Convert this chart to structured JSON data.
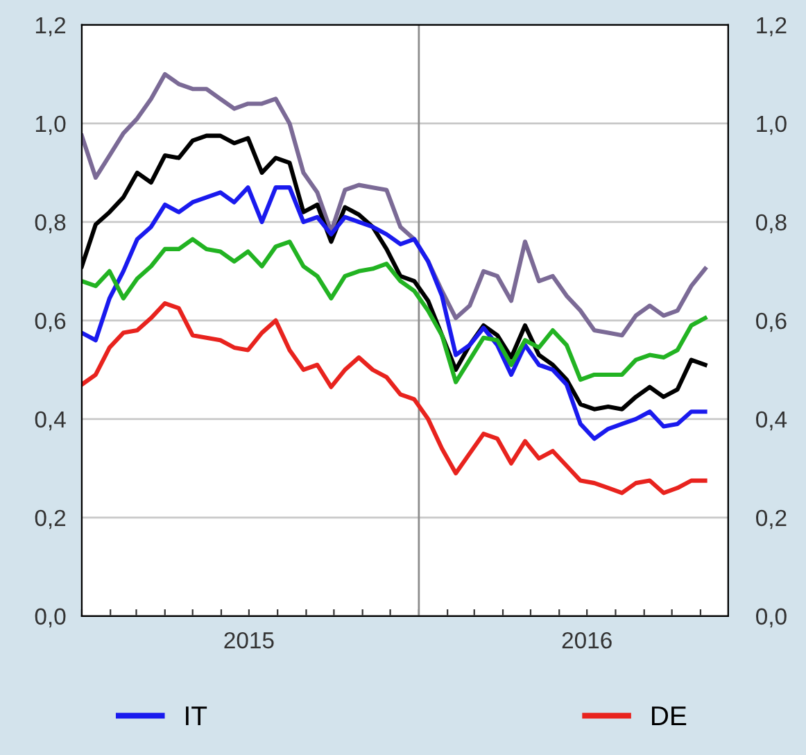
{
  "chart_data": {
    "type": "line",
    "x": [
      "2015-01-01",
      "2015-01-16",
      "2015-01-31",
      "2015-02-15",
      "2015-03-02",
      "2015-03-17",
      "2015-04-01",
      "2015-04-16",
      "2015-05-01",
      "2015-05-16",
      "2015-05-31",
      "2015-06-15",
      "2015-06-30",
      "2015-07-15",
      "2015-07-30",
      "2015-08-14",
      "2015-08-29",
      "2015-09-13",
      "2015-09-28",
      "2015-10-13",
      "2015-10-28",
      "2015-11-12",
      "2015-11-27",
      "2015-12-12",
      "2015-12-27",
      "2016-01-11",
      "2016-01-26",
      "2016-02-10",
      "2016-02-25",
      "2016-03-11",
      "2016-03-26",
      "2016-04-10",
      "2016-04-25",
      "2016-05-10",
      "2016-05-25",
      "2016-06-09",
      "2016-06-24",
      "2016-07-09",
      "2016-07-24",
      "2016-08-08",
      "2016-08-23",
      "2016-09-07",
      "2016-09-22",
      "2016-10-07",
      "2016-10-22",
      "2016-11-06"
    ],
    "series": [
      {
        "color": "#7b6a96",
        "values": [
          0.975,
          0.89,
          0.935,
          0.98,
          1.01,
          1.05,
          1.1,
          1.08,
          1.07,
          1.07,
          1.05,
          1.03,
          1.04,
          1.04,
          1.05,
          1.0,
          0.9,
          0.86,
          0.78,
          0.865,
          0.875,
          0.87,
          0.865,
          0.79,
          0.765,
          0.72,
          0.66,
          0.605,
          0.63,
          0.7,
          0.69,
          0.64,
          0.76,
          0.68,
          0.69,
          0.65,
          0.62,
          0.58,
          0.575,
          0.57,
          0.61,
          0.63,
          0.61,
          0.62,
          0.67,
          0.705
        ]
      },
      {
        "color": "#000000",
        "values": [
          0.71,
          0.795,
          0.82,
          0.85,
          0.9,
          0.88,
          0.935,
          0.93,
          0.965,
          0.975,
          0.975,
          0.96,
          0.97,
          0.9,
          0.93,
          0.92,
          0.82,
          0.835,
          0.76,
          0.83,
          0.815,
          0.79,
          0.745,
          0.69,
          0.68,
          0.64,
          0.57,
          0.5,
          0.55,
          0.59,
          0.57,
          0.525,
          0.59,
          0.53,
          0.51,
          0.48,
          0.43,
          0.42,
          0.425,
          0.42,
          0.445,
          0.465,
          0.445,
          0.46,
          0.52,
          0.51
        ]
      },
      {
        "name": "IT",
        "color": "#1a1aee",
        "values": [
          0.575,
          0.56,
          0.645,
          0.7,
          0.765,
          0.79,
          0.835,
          0.82,
          0.84,
          0.85,
          0.86,
          0.84,
          0.87,
          0.8,
          0.87,
          0.87,
          0.8,
          0.81,
          0.775,
          0.81,
          0.8,
          0.79,
          0.775,
          0.755,
          0.765,
          0.72,
          0.65,
          0.53,
          0.55,
          0.585,
          0.55,
          0.49,
          0.55,
          0.51,
          0.5,
          0.47,
          0.39,
          0.36,
          0.38,
          0.39,
          0.4,
          0.415,
          0.385,
          0.39,
          0.415,
          0.415
        ]
      },
      {
        "color": "#22b322",
        "values": [
          0.68,
          0.67,
          0.7,
          0.645,
          0.685,
          0.71,
          0.745,
          0.745,
          0.765,
          0.745,
          0.74,
          0.72,
          0.74,
          0.71,
          0.75,
          0.76,
          0.71,
          0.69,
          0.645,
          0.69,
          0.7,
          0.705,
          0.715,
          0.68,
          0.66,
          0.62,
          0.57,
          0.475,
          0.52,
          0.565,
          0.56,
          0.51,
          0.56,
          0.545,
          0.58,
          0.55,
          0.48,
          0.49,
          0.49,
          0.49,
          0.52,
          0.53,
          0.525,
          0.54,
          0.59,
          0.605
        ]
      },
      {
        "name": "DE",
        "color": "#e8231e",
        "values": [
          0.47,
          0.49,
          0.545,
          0.575,
          0.58,
          0.605,
          0.635,
          0.625,
          0.57,
          0.565,
          0.56,
          0.545,
          0.54,
          0.575,
          0.6,
          0.54,
          0.5,
          0.51,
          0.465,
          0.5,
          0.525,
          0.5,
          0.485,
          0.45,
          0.44,
          0.4,
          0.34,
          0.29,
          0.33,
          0.37,
          0.36,
          0.31,
          0.355,
          0.32,
          0.335,
          0.305,
          0.275,
          0.27,
          0.26,
          0.25,
          0.27,
          0.275,
          0.25,
          0.26,
          0.275,
          0.275
        ]
      }
    ],
    "xlim": [
      "2015-01-01",
      "2016-12-01"
    ],
    "xticks": [
      {
        "value": "2015-01-01",
        "label": null
      },
      {
        "value": "2015-02-01",
        "label": null
      },
      {
        "value": "2015-03-01",
        "label": null
      },
      {
        "value": "2015-04-01",
        "label": null
      },
      {
        "value": "2015-05-01",
        "label": null
      },
      {
        "value": "2015-06-01",
        "label": null
      },
      {
        "value": "2015-07-01",
        "label": "2015"
      },
      {
        "value": "2015-08-01",
        "label": null
      },
      {
        "value": "2015-09-01",
        "label": null
      },
      {
        "value": "2015-10-01",
        "label": null
      },
      {
        "value": "2015-11-01",
        "label": null
      },
      {
        "value": "2015-12-01",
        "label": null
      },
      {
        "value": "2016-01-01",
        "label": null
      },
      {
        "value": "2016-02-01",
        "label": null
      },
      {
        "value": "2016-03-01",
        "label": null
      },
      {
        "value": "2016-04-01",
        "label": null
      },
      {
        "value": "2016-05-01",
        "label": null
      },
      {
        "value": "2016-06-01",
        "label": null
      },
      {
        "value": "2016-07-01",
        "label": "2016"
      },
      {
        "value": "2016-08-01",
        "label": null
      },
      {
        "value": "2016-09-01",
        "label": null
      },
      {
        "value": "2016-10-01",
        "label": null
      },
      {
        "value": "2016-11-01",
        "label": null
      }
    ],
    "ylim": [
      0,
      1.2
    ],
    "yticks": [
      {
        "value": 0,
        "label": "0,0"
      },
      {
        "value": 0.2,
        "label": "0,2"
      },
      {
        "value": 0.4,
        "label": "0,4"
      },
      {
        "value": 0.6,
        "label": "0,6"
      },
      {
        "value": 0.8,
        "label": "0,8"
      },
      {
        "value": 1.0,
        "label": "1,0"
      },
      {
        "value": 1.2,
        "label": "1,2"
      }
    ],
    "y2lim": [
      0,
      1.2
    ],
    "y2ticks": [
      {
        "value": 0,
        "label": "0,0"
      },
      {
        "value": 0.2,
        "label": "0,2"
      },
      {
        "value": 0.4,
        "label": "0,4"
      },
      {
        "value": 0.6,
        "label": "0,6"
      },
      {
        "value": 0.8,
        "label": "0,8"
      },
      {
        "value": 1.0,
        "label": "1,0"
      },
      {
        "value": 1.2,
        "label": "1,2"
      }
    ],
    "ref_lines": [
      {
        "axis": "x",
        "value": "2016-01-01",
        "color": "#8c8c8c",
        "line_style": "solid"
      }
    ],
    "grid": "y",
    "legend": "bottom",
    "line_style": "solid"
  }
}
